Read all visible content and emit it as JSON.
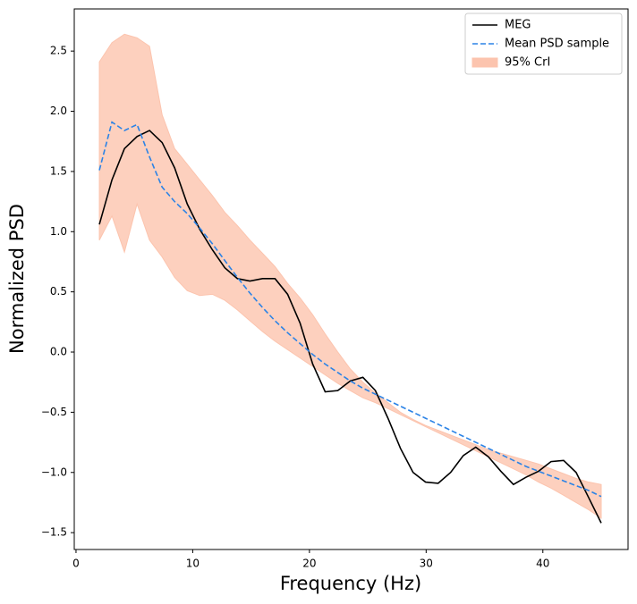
{
  "chart_data": {
    "type": "line",
    "xlabel": "Frequency (Hz)",
    "ylabel": "Normalized PSD",
    "x": [
      2,
      3.08,
      4.15,
      5.23,
      6.3,
      7.38,
      8.45,
      9.53,
      10.6,
      11.68,
      12.75,
      13.83,
      14.9,
      15.98,
      17.05,
      18.13,
      19.2,
      20.28,
      21.35,
      22.43,
      23.5,
      24.58,
      25.65,
      26.73,
      27.8,
      28.88,
      29.95,
      31.03,
      32.1,
      33.18,
      34.25,
      35.33,
      36.4,
      37.48,
      38.55,
      39.63,
      40.7,
      41.78,
      42.85,
      43.93,
      45
    ],
    "series": [
      {
        "name": "MEG",
        "color": "#000000",
        "style": "solid",
        "values": [
          1.06,
          1.43,
          1.69,
          1.79,
          1.84,
          1.74,
          1.53,
          1.23,
          1.02,
          0.85,
          0.7,
          0.61,
          0.59,
          0.61,
          0.61,
          0.48,
          0.24,
          -0.1,
          -0.33,
          -0.32,
          -0.24,
          -0.21,
          -0.32,
          -0.55,
          -0.8,
          -1.0,
          -1.08,
          -1.09,
          -1.0,
          -0.86,
          -0.79,
          -0.87,
          -0.99,
          -1.1,
          -1.04,
          -0.99,
          -0.91,
          -0.9,
          -1.0,
          -1.21,
          -1.42
        ]
      },
      {
        "name": "Mean PSD sample",
        "color": "#2b83e6",
        "style": "dashed",
        "values": [
          1.51,
          1.91,
          1.84,
          1.89,
          1.62,
          1.37,
          1.25,
          1.15,
          1.03,
          0.9,
          0.76,
          0.62,
          0.49,
          0.37,
          0.26,
          0.16,
          0.07,
          -0.02,
          -0.1,
          -0.17,
          -0.24,
          -0.3,
          -0.35,
          -0.4,
          -0.45,
          -0.5,
          -0.55,
          -0.6,
          -0.65,
          -0.7,
          -0.75,
          -0.8,
          -0.85,
          -0.9,
          -0.95,
          -0.99,
          -1.03,
          -1.07,
          -1.11,
          -1.15,
          -1.2
        ]
      },
      {
        "name": "95% CrI",
        "color": "#fcc4ae",
        "style": "band",
        "upper": [
          2.41,
          2.57,
          2.64,
          2.61,
          2.54,
          1.97,
          1.69,
          1.56,
          1.43,
          1.3,
          1.16,
          1.05,
          0.93,
          0.82,
          0.71,
          0.57,
          0.45,
          0.31,
          0.15,
          0.0,
          -0.14,
          -0.25,
          -0.34,
          -0.42,
          -0.5,
          -0.56,
          -0.61,
          -0.65,
          -0.69,
          -0.73,
          -0.77,
          -0.81,
          -0.84,
          -0.87,
          -0.9,
          -0.93,
          -0.97,
          -1.01,
          -1.05,
          -1.08,
          -1.1
        ],
        "lower": [
          0.93,
          1.13,
          0.83,
          1.23,
          0.93,
          0.79,
          0.62,
          0.51,
          0.47,
          0.48,
          0.43,
          0.35,
          0.26,
          0.17,
          0.09,
          0.02,
          -0.05,
          -0.12,
          -0.19,
          -0.26,
          -0.32,
          -0.38,
          -0.42,
          -0.47,
          -0.52,
          -0.57,
          -0.62,
          -0.67,
          -0.72,
          -0.77,
          -0.82,
          -0.87,
          -0.92,
          -0.97,
          -1.02,
          -1.08,
          -1.13,
          -1.19,
          -1.25,
          -1.31,
          -1.38
        ]
      }
    ],
    "xlim": [
      -0.15,
      47.3
    ],
    "xticks": [
      0,
      10,
      20,
      30,
      40
    ],
    "ylim": [
      -1.64,
      2.85
    ],
    "yticks": [
      {
        "value": -1.5,
        "label": "−1.5"
      },
      {
        "value": -1.0,
        "label": "−1.0"
      },
      {
        "value": -0.5,
        "label": "−0.5"
      },
      {
        "value": 0,
        "label": "0.0"
      },
      0.5,
      {
        "value": 1,
        "label": "1.0"
      },
      1.5,
      {
        "value": 2,
        "label": "2.0"
      },
      2.5
    ],
    "legend": "upper right",
    "grid": false
  }
}
